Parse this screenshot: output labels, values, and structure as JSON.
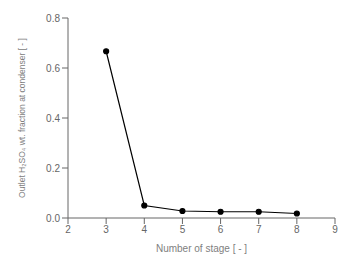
{
  "chart_data": {
    "type": "line",
    "xlabel": "Number of stage [ - ]",
    "ylabel": "Outlet H₂SO₄ wt. fraction at condenser [ - ]",
    "x": [
      3,
      4,
      5,
      6,
      7,
      8
    ],
    "values": [
      0.667,
      0.05,
      0.028,
      0.025,
      0.025,
      0.018
    ],
    "color": "#000000",
    "marker": "circle",
    "xlim": [
      2,
      9
    ],
    "ylim": [
      0,
      0.8
    ],
    "xticks": [
      2,
      3,
      4,
      5,
      6,
      7,
      8,
      9
    ],
    "yticks": [
      {
        "value": 0,
        "label": "0.0"
      },
      0.2,
      0.4,
      0.6,
      0.8
    ],
    "grid": false
  }
}
